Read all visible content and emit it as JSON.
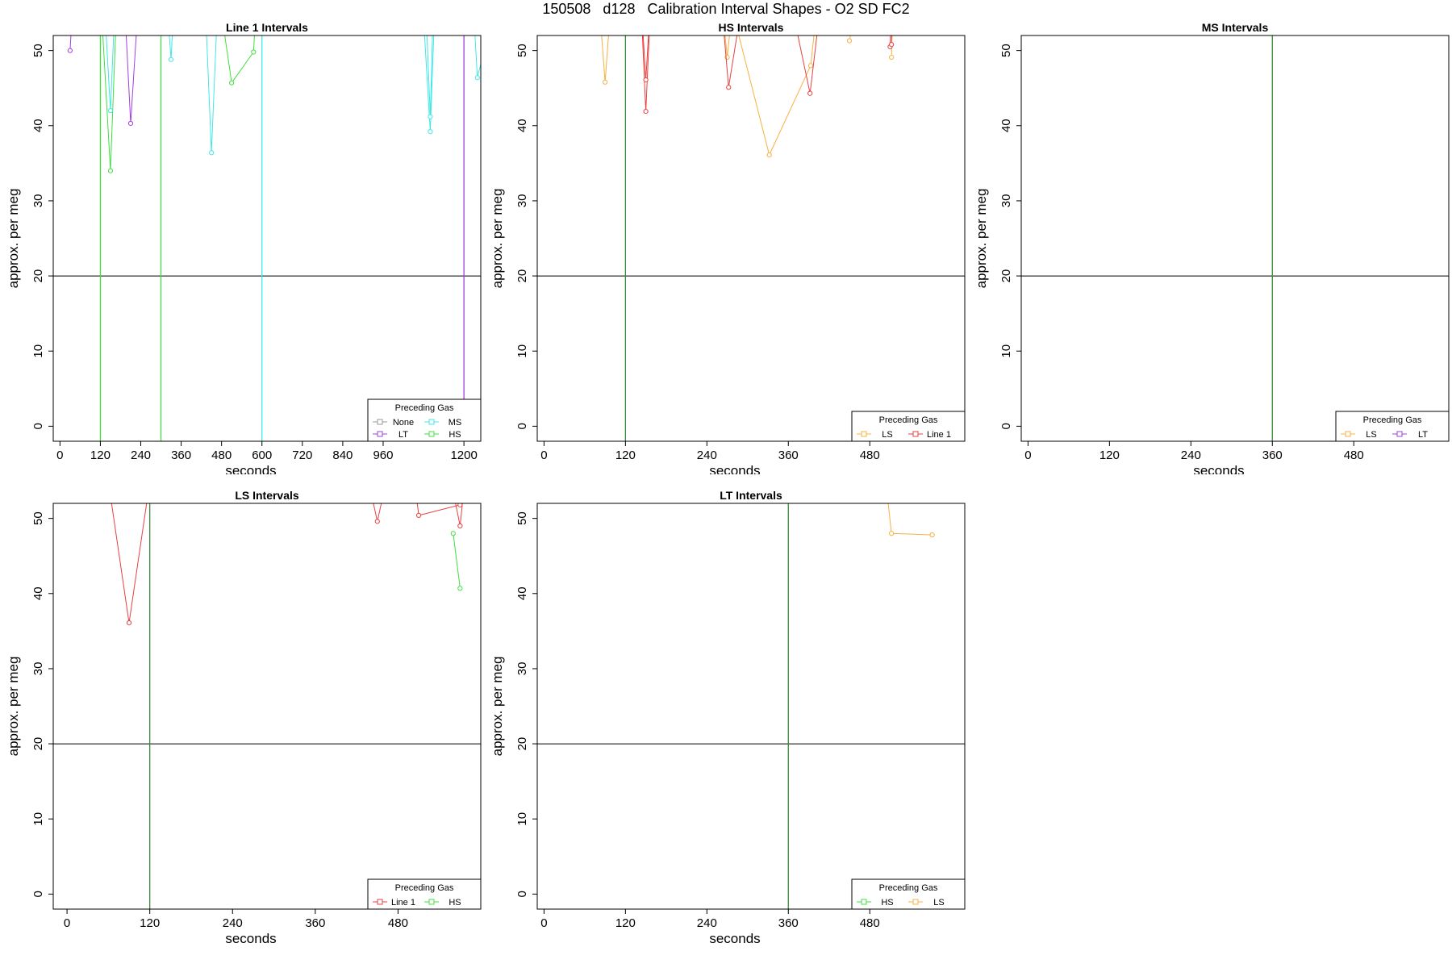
{
  "page": {
    "title": "150508   d128   Calibration Interval Shapes - O2 SD FC2"
  },
  "colors": {
    "None": "#999999",
    "LT": "#a040e0",
    "MS": "#40e8e8",
    "HS": "#40e040",
    "LS": "#f8b040",
    "Line 1": "#e84040",
    "refline": "#3a8a3a"
  },
  "chart_data": [
    {
      "type": "line",
      "title": "Line 1 Intervals",
      "xlabel": "seconds",
      "ylabel": "approx. per meg",
      "xlim": [
        -20,
        1250
      ],
      "ylim": [
        -2,
        52
      ],
      "xticks": [
        0,
        120,
        240,
        360,
        480,
        600,
        720,
        840,
        960,
        1200
      ],
      "yticks": [
        0,
        10,
        20,
        30,
        40,
        50
      ],
      "hline": 20,
      "legend": {
        "title": "Preceding Gas",
        "position": "bottom-right",
        "ncol": 2,
        "entries": [
          "None",
          "MS",
          "LT",
          "HS"
        ]
      },
      "vlines": [
        {
          "x": 120,
          "color": "HS"
        },
        {
          "x": 300,
          "color": "HS"
        },
        {
          "x": 600,
          "color": "MS"
        },
        {
          "x": 1200,
          "color": "LT"
        }
      ],
      "series": [
        {
          "name": "LT",
          "points": [
            [
              30,
              50
            ],
            [
              40,
              58
            ]
          ]
        },
        {
          "name": "LT",
          "points": [
            [
              190,
              58
            ],
            [
              210,
              40.3
            ],
            [
              235,
              58
            ]
          ]
        },
        {
          "name": "HS",
          "points": [
            [
              120,
              58
            ],
            [
              150,
              34
            ],
            [
              170,
              58
            ]
          ]
        },
        {
          "name": "MS",
          "points": [
            [
              130,
              58
            ],
            [
              150,
              42
            ],
            [
              165,
              58
            ]
          ]
        },
        {
          "name": "MS",
          "points": [
            [
              315,
              58
            ],
            [
              330,
              48.8
            ],
            [
              340,
              58
            ]
          ]
        },
        {
          "name": "MS",
          "points": [
            [
              430,
              58
            ],
            [
              450,
              36.4
            ],
            [
              470,
              58
            ]
          ]
        },
        {
          "name": "HS",
          "points": [
            [
              470,
              58
            ],
            [
              510,
              45.7
            ],
            [
              575,
              49.8
            ],
            [
              585,
              58
            ]
          ]
        },
        {
          "name": "MS",
          "points": [
            [
              1075,
              58
            ],
            [
              1100,
              39.2
            ],
            [
              1115,
              58
            ]
          ]
        },
        {
          "name": "MS",
          "points": [
            [
              1085,
              58
            ],
            [
              1100,
              41.2
            ],
            [
              1110,
              58
            ]
          ]
        },
        {
          "name": "MS",
          "points": [
            [
              1225,
              58
            ],
            [
              1240,
              46.4
            ],
            [
              1260,
              50
            ]
          ]
        }
      ]
    },
    {
      "type": "line",
      "title": "HS Intervals",
      "xlabel": "seconds",
      "ylabel": "approx. per meg",
      "xlim": [
        -10,
        620
      ],
      "ylim": [
        -2,
        52
      ],
      "xticks": [
        0,
        120,
        240,
        360,
        480
      ],
      "yticks": [
        0,
        10,
        20,
        30,
        40,
        50
      ],
      "hline": 20,
      "legend": {
        "title": "Preceding Gas",
        "position": "bottom-right",
        "ncol": 2,
        "entries": [
          "LS",
          "Line 1"
        ]
      },
      "vlines": [
        {
          "x": 120,
          "color": "refline"
        }
      ],
      "series": [
        {
          "name": "LS",
          "points": [
            [
              80,
              58
            ],
            [
              90,
              45.8
            ],
            [
              100,
              58
            ]
          ]
        },
        {
          "name": "LS",
          "points": [
            [
              260,
              58
            ],
            [
              270,
              49.1
            ],
            [
              280,
              58
            ]
          ]
        },
        {
          "name": "LS",
          "points": [
            [
              270,
              58
            ],
            [
              332,
              36.1
            ],
            [
              393,
              48
            ],
            [
              405,
              58
            ]
          ]
        },
        {
          "name": "LS",
          "points": [
            [
              450,
              51.3
            ],
            [
              465,
              58
            ]
          ]
        },
        {
          "name": "LS",
          "points": [
            [
              512,
              49.1
            ],
            [
              515,
              58
            ]
          ]
        },
        {
          "name": "Line 1",
          "points": [
            [
              142,
              58
            ],
            [
              150,
              41.9
            ],
            [
              158,
              58
            ]
          ]
        },
        {
          "name": "Line 1",
          "points": [
            [
              142,
              58
            ],
            [
              150,
              46.1
            ],
            [
              158,
              58
            ]
          ]
        },
        {
          "name": "Line 1",
          "points": [
            [
              260,
              58
            ],
            [
              272,
              45.1
            ],
            [
              295,
              58
            ]
          ]
        },
        {
          "name": "Line 1",
          "points": [
            [
              360,
              58
            ],
            [
              392,
              44.3
            ],
            [
              410,
              58
            ]
          ]
        },
        {
          "name": "Line 1",
          "points": [
            [
              510,
              50.5
            ],
            [
              512,
              58
            ]
          ]
        },
        {
          "name": "Line 1",
          "points": [
            [
              512,
              50.8
            ],
            [
              514,
              58
            ]
          ]
        }
      ]
    },
    {
      "type": "line",
      "title": "MS Intervals",
      "xlabel": "seconds",
      "ylabel": "approx. per meg",
      "xlim": [
        -10,
        620
      ],
      "ylim": [
        -2,
        52
      ],
      "xticks": [
        0,
        120,
        240,
        360,
        480
      ],
      "yticks": [
        0,
        10,
        20,
        30,
        40,
        50
      ],
      "hline": 20,
      "legend": {
        "title": "Preceding Gas",
        "position": "bottom-right",
        "ncol": 2,
        "entries": [
          "LS",
          "LT"
        ]
      },
      "vlines": [
        {
          "x": 360,
          "color": "refline"
        }
      ],
      "series": []
    },
    {
      "type": "line",
      "title": "LS Intervals",
      "xlabel": "seconds",
      "ylabel": "approx. per meg",
      "xlim": [
        -20,
        600
      ],
      "ylim": [
        -2,
        52
      ],
      "xticks": [
        0,
        120,
        240,
        360,
        480
      ],
      "yticks": [
        0,
        10,
        20,
        30,
        40,
        50
      ],
      "hline": 20,
      "legend": {
        "title": "Preceding Gas",
        "position": "bottom-right",
        "ncol": 2,
        "entries": [
          "Line 1",
          "HS"
        ]
      },
      "vlines": [
        {
          "x": 120,
          "color": "refline"
        }
      ],
      "series": [
        {
          "name": "Line 1",
          "points": [
            [
              55,
              58
            ],
            [
              90,
              36.1
            ],
            [
              125,
              58
            ]
          ]
        },
        {
          "name": "Line 1",
          "points": [
            [
              430,
              58
            ],
            [
              450,
              49.6
            ],
            [
              470,
              58
            ]
          ]
        },
        {
          "name": "Line 1",
          "points": [
            [
              500,
              58
            ],
            [
              510,
              50.4
            ],
            [
              570,
              51.8
            ],
            [
              580,
              58
            ]
          ]
        },
        {
          "name": "Line 1",
          "points": [
            [
              550,
              58
            ],
            [
              570,
              49
            ],
            [
              580,
              58
            ]
          ]
        },
        {
          "name": "HS",
          "points": [
            [
              560,
              48
            ],
            [
              570,
              40.7
            ]
          ]
        }
      ]
    },
    {
      "type": "line",
      "title": "LT Intervals",
      "xlabel": "seconds",
      "ylabel": "approx. per meg",
      "xlim": [
        -10,
        620
      ],
      "ylim": [
        -2,
        52
      ],
      "xticks": [
        0,
        120,
        240,
        360,
        480
      ],
      "yticks": [
        0,
        10,
        20,
        30,
        40,
        50
      ],
      "hline": 20,
      "legend": {
        "title": "Preceding Gas",
        "position": "bottom-right",
        "ncol": 2,
        "entries": [
          "HS",
          "LS"
        ]
      },
      "vlines": [
        {
          "x": 360,
          "color": "refline"
        }
      ],
      "series": [
        {
          "name": "LS",
          "points": [
            [
              500,
              58
            ],
            [
              512,
              48
            ],
            [
              572,
              47.8
            ]
          ]
        }
      ]
    }
  ]
}
